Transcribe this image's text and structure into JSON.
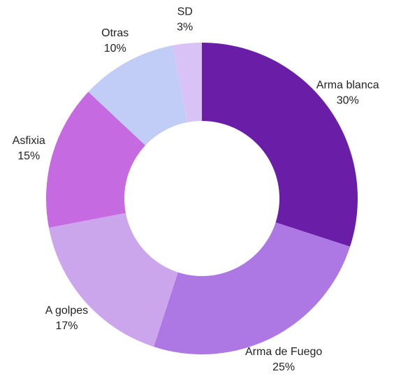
{
  "chart_data": {
    "type": "donut",
    "categories": [
      "Arma blanca",
      "Arma de Fuego",
      "A golpes",
      "Asfixia",
      "Otras",
      "SD"
    ],
    "values": [
      30,
      25,
      17,
      15,
      10,
      3
    ],
    "value_labels": [
      "30%",
      "25%",
      "17%",
      "15%",
      "10%",
      "3%"
    ],
    "colors": [
      "#6a1ea8",
      "#ad78e3",
      "#cca6ec",
      "#c56ae0",
      "#c2cdf7",
      "#d9c2f5"
    ]
  }
}
